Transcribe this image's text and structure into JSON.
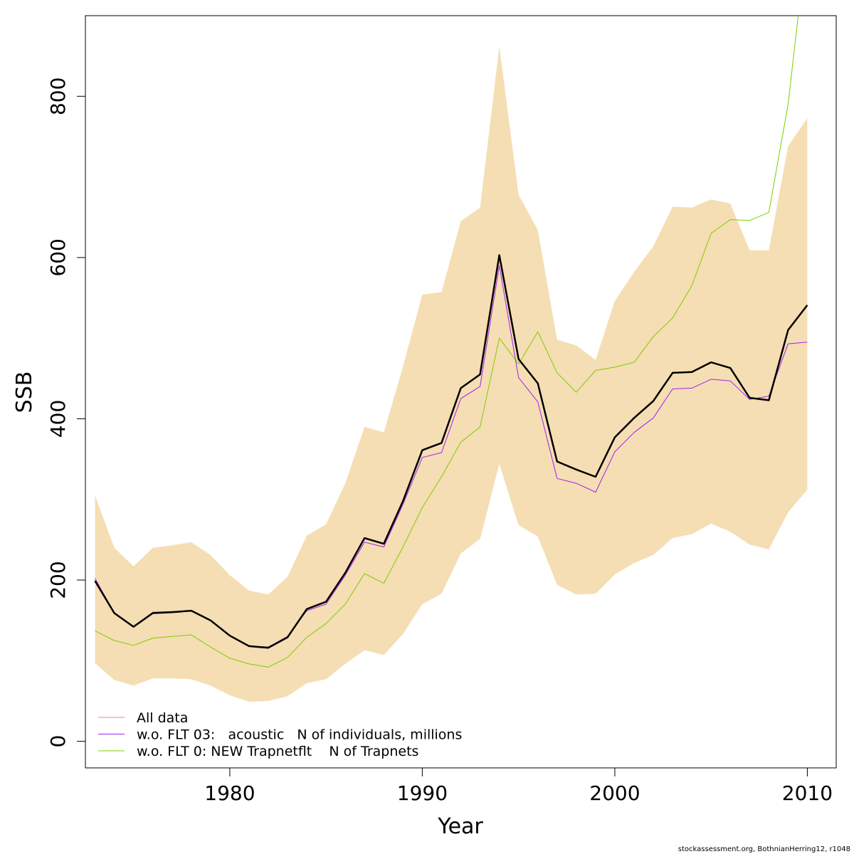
{
  "chart_data": {
    "type": "line",
    "xlabel": "Year",
    "ylabel": "SSB",
    "xlim": [
      1972.5,
      2011.5
    ],
    "ylim": [
      -33,
      900
    ],
    "xticks": [
      1980,
      1990,
      2000,
      2010
    ],
    "yticks": [
      0,
      200,
      400,
      600,
      800
    ],
    "legend_position": "bottom-left",
    "x": [
      1973,
      1974,
      1975,
      1976,
      1977,
      1978,
      1979,
      1980,
      1981,
      1982,
      1983,
      1984,
      1985,
      1986,
      1987,
      1988,
      1989,
      1990,
      1991,
      1992,
      1993,
      1994,
      1995,
      1996,
      1997,
      1998,
      1999,
      2000,
      2001,
      2002,
      2003,
      2004,
      2005,
      2006,
      2007,
      2008,
      2009,
      2010
    ],
    "band": {
      "color": "#F5DEB3",
      "upper": [
        305,
        240,
        217,
        240,
        243,
        247,
        231,
        206,
        187,
        182,
        204,
        255,
        269,
        320,
        390,
        383,
        465,
        554,
        557,
        645,
        662,
        862,
        678,
        634,
        498,
        491,
        473,
        546,
        582,
        614,
        663,
        662,
        672,
        667,
        609,
        609,
        738,
        773
      ],
      "lower": [
        97,
        76,
        69,
        78,
        78,
        77,
        69,
        57,
        49,
        50,
        56,
        72,
        77,
        96,
        113,
        107,
        133,
        170,
        183,
        233,
        251,
        344,
        268,
        254,
        194,
        182,
        183,
        207,
        221,
        231,
        252,
        257,
        270,
        260,
        244,
        238,
        284,
        312
      ]
    },
    "series": [
      {
        "name": "All data",
        "color": "#000000",
        "width": 2.5,
        "values": [
          199,
          159,
          142,
          159,
          160,
          162,
          150,
          131,
          118,
          116,
          129,
          164,
          173,
          209,
          252,
          245,
          298,
          361,
          370,
          438,
          455,
          603,
          474,
          444,
          347,
          337,
          328,
          377,
          401,
          422,
          457,
          458,
          470,
          463,
          426,
          423,
          510,
          541
        ]
      },
      {
        "name": "w.o. FLT 03:   acoustic   N of individuals, millions",
        "color": "#A020F0",
        "width": 1,
        "values": [
          202,
          159,
          142,
          160,
          161,
          162,
          150,
          131,
          118,
          117,
          130,
          162,
          170,
          206,
          247,
          241,
          294,
          352,
          358,
          425,
          440,
          590,
          451,
          421,
          326,
          320,
          309,
          359,
          383,
          401,
          437,
          438,
          449,
          447,
          424,
          428,
          493,
          495
        ]
      },
      {
        "name": "w.o. FLT 0: NEW Trapnetflt    N of Trapnets",
        "color": "#7CCD00",
        "width": 1,
        "values": [
          137,
          125,
          119,
          128,
          130,
          132,
          117,
          103,
          96,
          92,
          104,
          129,
          146,
          170,
          208,
          196,
          241,
          290,
          328,
          371,
          390,
          500,
          468,
          508,
          457,
          433,
          460,
          464,
          470,
          502,
          525,
          565,
          630,
          647,
          646,
          656,
          790,
          1000
        ]
      }
    ],
    "legend": [
      {
        "label": "All data",
        "color": "#F08080"
      },
      {
        "label": "w.o. FLT 03:   acoustic   N of individuals, millions",
        "color": "#A020F0"
      },
      {
        "label": "w.o. FLT 0: NEW Trapnetflt    N of Trapnets",
        "color": "#7CCD00"
      }
    ]
  },
  "footer": "stockassessment.org, BothnianHerring12, r1048"
}
